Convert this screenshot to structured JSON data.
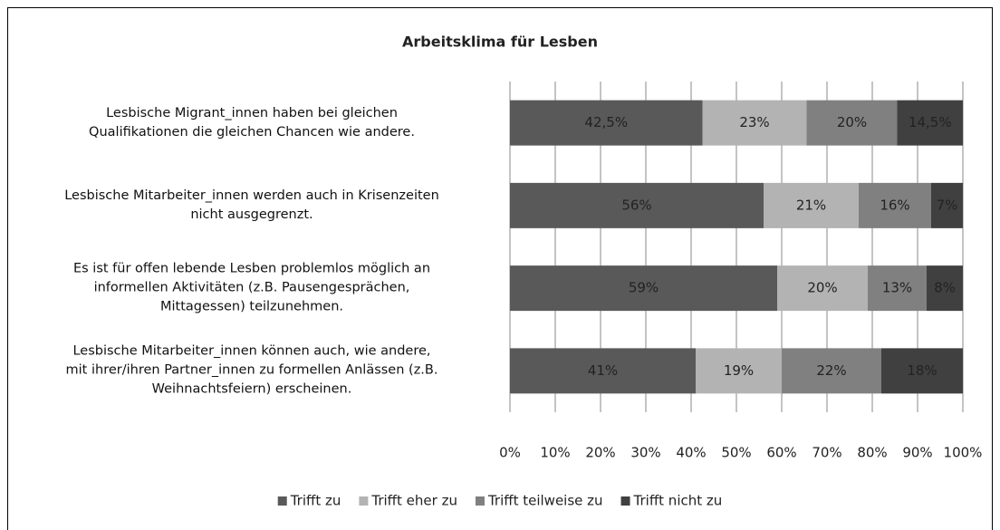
{
  "chart_data": {
    "type": "stacked_bar_horizontal",
    "title": "Arbeitsklima für Lesben",
    "categories": [
      "Lesbische Migrant_innen haben bei gleichen\nQualifikationen die gleichen Chancen wie andere.",
      "Lesbische Mitarbeiter_innen werden auch in Krisenzeiten\nnicht ausgegrenzt.",
      "Es ist für offen lebende Lesben problemlos möglich an\ninformellen Aktivitäten (z.B. Pausengesprächen,\nMittagessen) teilzunehmen.",
      "Lesbische Mitarbeiter_innen können auch, wie andere,\nmit ihrer/ihren Partner_innen zu formellen Anlässen (z.B.\nWeihnachtsfeiern) erscheinen."
    ],
    "series": [
      {
        "name": "Trifft zu",
        "color": "#595959",
        "values": [
          42.5,
          56,
          59,
          41
        ],
        "value_labels": [
          "42,5%",
          "56%",
          "59%",
          "41%"
        ]
      },
      {
        "name": "Trifft eher zu",
        "color": "#b3b3b3",
        "values": [
          23,
          21,
          20,
          19
        ],
        "value_labels": [
          "23%",
          "21%",
          "20%",
          "19%"
        ]
      },
      {
        "name": "Trifft teilweise zu",
        "color": "#808080",
        "values": [
          20,
          16,
          13,
          22
        ],
        "value_labels": [
          "20%",
          "16%",
          "13%",
          "22%"
        ]
      },
      {
        "name": "Trifft nicht zu",
        "color": "#404040",
        "values": [
          14.5,
          7,
          8,
          18
        ],
        "value_labels": [
          "14,5%",
          "7%",
          "8%",
          "18%"
        ]
      }
    ],
    "xlim": [
      0,
      100
    ],
    "xticks": [
      {
        "value": 0,
        "label": "0%"
      },
      {
        "value": 10,
        "label": "10%"
      },
      {
        "value": 20,
        "label": "20%"
      },
      {
        "value": 30,
        "label": "30%"
      },
      {
        "value": 40,
        "label": "40%"
      },
      {
        "value": 50,
        "label": "50%"
      },
      {
        "value": 60,
        "label": "60%"
      },
      {
        "value": 70,
        "label": "70%"
      },
      {
        "value": 80,
        "label": "80%"
      },
      {
        "value": 90,
        "label": "90%"
      },
      {
        "value": 100,
        "label": "100%"
      }
    ],
    "grid": true,
    "legend": "bottom"
  }
}
